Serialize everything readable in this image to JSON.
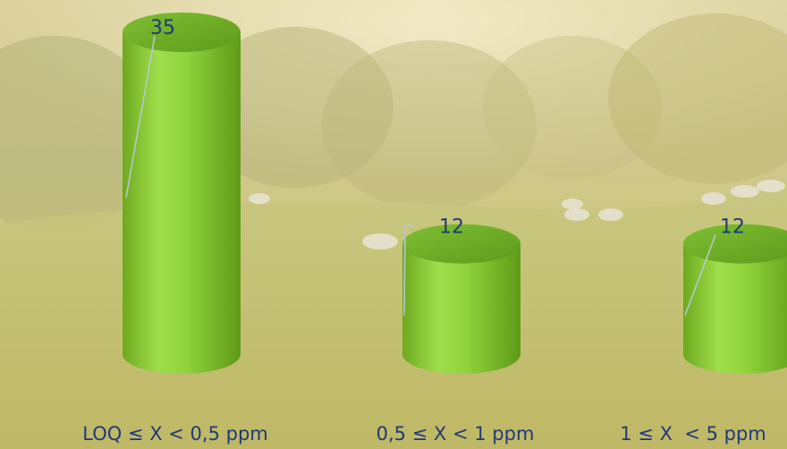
{
  "chart_data": {
    "type": "bar",
    "style": "3d-cylinder",
    "categories": [
      "LOQ ≤ X < 0,5 ppm",
      "0,5 ≤ X < 1 ppm",
      "1 ≤ X  < 5 ppm"
    ],
    "values": [
      35,
      12,
      12
    ],
    "data_labels": [
      "35",
      "12",
      "12"
    ],
    "title": "",
    "xlabel": "",
    "ylabel": "",
    "ylim": [
      0,
      35
    ],
    "grid": false,
    "legend": "none",
    "colors": {
      "bar_light": "#9de04a",
      "bar_mid": "#7cc62d",
      "bar_dark": "#5e9e1a",
      "bar_top": "#6fb52a",
      "label_text": "#1f3a78",
      "leader_line": "#b9c9d6"
    }
  },
  "background": {
    "description_icon": "pasture-with-sheep-photo"
  }
}
